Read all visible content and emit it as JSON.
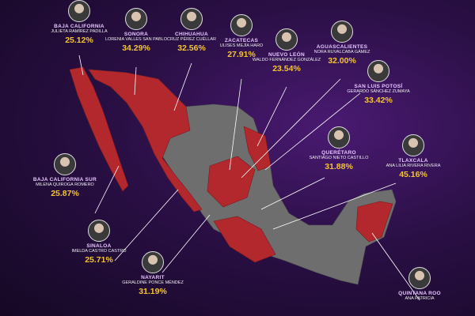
{
  "entries": [
    {
      "state": "Baja California",
      "person": "Julieta Ramírez Padilla",
      "percent": "25.12%"
    },
    {
      "state": "Sonora",
      "person": "Lorenia Valles San Pablo",
      "percent": "34.29%"
    },
    {
      "state": "Chihuahua",
      "person": "Cruz Pérez Cuéllar",
      "percent": "32.56%"
    },
    {
      "state": "Zacatecas",
      "person": "Ulises Mejía Haro",
      "percent": "27.91%"
    },
    {
      "state": "Nuevo León",
      "person": "Waldo Fernández González",
      "percent": "23.54%"
    },
    {
      "state": "Aguascalientes",
      "person": "Nora Ruvalcaba Gámez",
      "percent": "32.00%"
    },
    {
      "state": "San Luis Potosí",
      "person": "Gerardo Sánchez Zumaya",
      "percent": "33.42%"
    },
    {
      "state": "Querétaro",
      "person": "Santiago Nieto Castillo",
      "percent": "31.88%"
    },
    {
      "state": "Tlaxcala",
      "person": "Ana Lilia Rivera Rivera",
      "percent": "45.16%"
    },
    {
      "state": "Baja California Sur",
      "person": "Milena Quiroga Romero",
      "percent": "25.87%"
    },
    {
      "state": "Sinaloa",
      "person": "Imelda Castro Castro",
      "percent": "25.71%"
    },
    {
      "state": "Nayarit",
      "person": "Geraldine Ponce Méndez",
      "percent": "31.19%"
    },
    {
      "state": "Quintana Roo",
      "person": "Ana Patricia"
    }
  ]
}
